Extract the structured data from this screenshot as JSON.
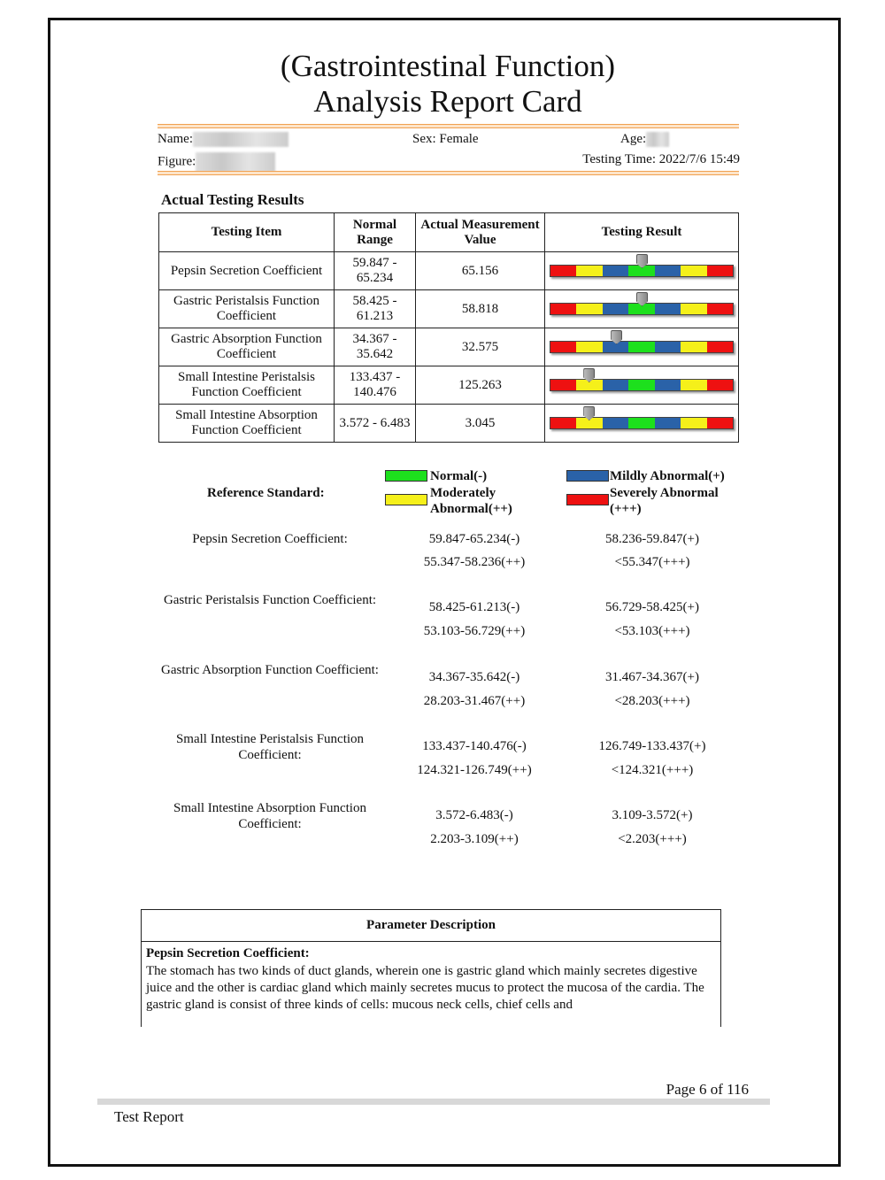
{
  "title": {
    "line1": "(Gastrointestinal Function)",
    "line2": "Analysis Report Card"
  },
  "info": {
    "name_label": "Name:",
    "figure_label": "Figure:",
    "sex": "Sex: Female",
    "age_label": "Age:",
    "testing_time": "Testing Time: 2022/7/6 15:49"
  },
  "section_title": "Actual Testing Results",
  "table": {
    "headers": [
      "Testing Item",
      "Normal Range",
      "Actual Measurement Value",
      "Testing Result"
    ],
    "rows": [
      {
        "item": "Pepsin Secretion Coefficient",
        "range": "59.847 - 65.234",
        "value": "65.156",
        "marker": 0.5
      },
      {
        "item": "Gastric Peristalsis Function Coefficient",
        "range": "58.425 - 61.213",
        "value": "58.818",
        "marker": 0.5
      },
      {
        "item": "Gastric Absorption Function Coefficient",
        "range": "34.367 - 35.642",
        "value": "32.575",
        "marker": 0.36
      },
      {
        "item": "Small Intestine Peristalsis Function Coefficient",
        "range": "133.437 - 140.476",
        "value": "125.263",
        "marker": 0.21
      },
      {
        "item": "Small Intestine Absorption Function Coefficient",
        "range": "3.572 - 6.483",
        "value": "3.045",
        "marker": 0.21
      }
    ]
  },
  "bar_colors": [
    "#ee1111",
    "#f5f01a",
    "#2a62a8",
    "#1de01d",
    "#2a62a8",
    "#f5f01a",
    "#ee1111"
  ],
  "reference": {
    "label": "Reference Standard:",
    "legend": [
      {
        "label": "Normal(-)",
        "color": "#1de01d"
      },
      {
        "label": "Moderately Abnormal(++)",
        "color": "#f5f01a"
      },
      {
        "label": "Mildly Abnormal(+)",
        "color": "#2a62a8"
      },
      {
        "label": "Severely Abnormal (+++)",
        "color": "#ee1111"
      }
    ],
    "items": [
      {
        "name": "Pepsin Secretion Coefficient:",
        "normal": "59.847-65.234(-)",
        "mild": "58.236-59.847(+)",
        "moderate": "55.347-58.236(++)",
        "severe": "<55.347(+++)"
      },
      {
        "name": "Gastric Peristalsis Function Coefficient:",
        "normal": "58.425-61.213(-)",
        "mild": "56.729-58.425(+)",
        "moderate": "53.103-56.729(++)",
        "severe": "<53.103(+++)"
      },
      {
        "name": "Gastric Absorption Function Coefficient:",
        "normal": "34.367-35.642(-)",
        "mild": "31.467-34.367(+)",
        "moderate": "28.203-31.467(++)",
        "severe": "<28.203(+++)"
      },
      {
        "name": "Small Intestine Peristalsis Function Coefficient:",
        "normal": "133.437-140.476(-)",
        "mild": "126.749-133.437(+)",
        "moderate": "124.321-126.749(++)",
        "severe": "<124.321(+++)"
      },
      {
        "name": "Small Intestine Absorption Function Coefficient:",
        "normal": "3.572-6.483(-)",
        "mild": "3.109-3.572(+)",
        "moderate": "2.203-3.109(++)",
        "severe": "<2.203(+++)"
      }
    ]
  },
  "description": {
    "header": "Parameter Description",
    "subtitle": "Pepsin Secretion Coefficient:",
    "text": "The stomach has two kinds of duct glands, wherein one is gastric gland which mainly secretes digestive juice and the other is cardiac gland which mainly secretes mucus to protect the mucosa of the cardia. The gastric gland is consist of three kinds of cells: mucous neck cells, chief cells and"
  },
  "footer": {
    "page": "Page 6 of 116",
    "report": "Test Report"
  }
}
